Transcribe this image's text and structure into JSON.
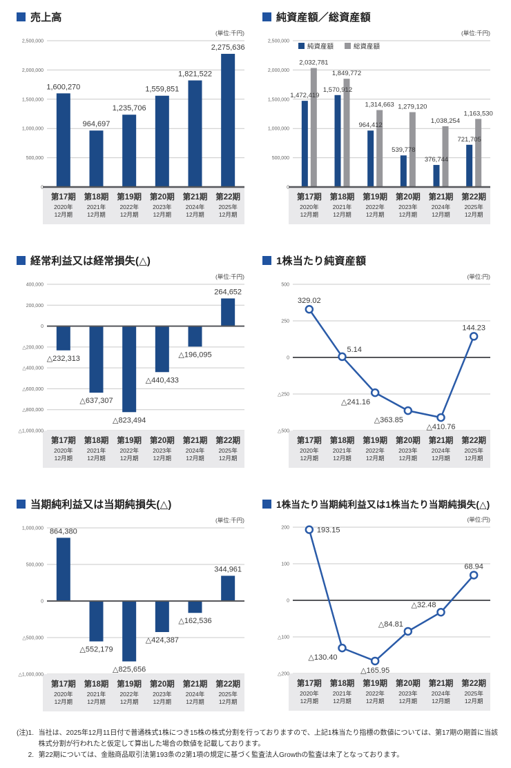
{
  "colors": {
    "accent_blue": "#2053a0",
    "bar_blue": "#1c4a87",
    "bar_gray": "#97979b",
    "line_blue": "#2a5ba8",
    "grid": "#c9c9c9",
    "zero_line": "#55565a",
    "band_bg": "#e9e9eb",
    "tick_text": "#666666",
    "label_text": "#3a3a3a",
    "category_text": "#333333",
    "unit_text": "#444444"
  },
  "categories": [
    {
      "period": "第17期",
      "year": "2020年",
      "month": "12月期"
    },
    {
      "period": "第18期",
      "year": "2021年",
      "month": "12月期"
    },
    {
      "period": "第19期",
      "year": "2022年",
      "month": "12月期"
    },
    {
      "period": "第20期",
      "year": "2023年",
      "month": "12月期"
    },
    {
      "period": "第21期",
      "year": "2024年",
      "month": "12月期"
    },
    {
      "period": "第22期",
      "year": "2025年",
      "month": "12月期"
    }
  ],
  "chart_data": [
    {
      "id": "sales",
      "type": "bar",
      "title": "売上高",
      "unit": "(単位:千円)",
      "ylim": [
        0,
        2500000
      ],
      "ytick_values": [
        2500000,
        2000000,
        1500000,
        1000000,
        500000,
        0
      ],
      "ytick_labels": [
        "2,500,000",
        "2,000,000",
        "1,500,000",
        "1,000,000",
        "500,000",
        "0"
      ],
      "values": [
        1600270,
        964697,
        1235706,
        1559851,
        1821522,
        2275636
      ],
      "labels": [
        "1,600,270",
        "964,697",
        "1,235,706",
        "1,559,851",
        "1,821,522",
        "2,275,636"
      ]
    },
    {
      "id": "net-assets-total-assets",
      "type": "grouped_bar",
      "title": "純資産額／総資産額",
      "unit": "(単位:千円)",
      "ylim": [
        0,
        2500000
      ],
      "ytick_values": [
        2500000,
        2000000,
        1500000,
        1000000,
        500000,
        0
      ],
      "ytick_labels": [
        "2,500,000",
        "2,000,000",
        "1,500,000",
        "1,000,000",
        "500,000",
        "0"
      ],
      "legend_position": "top-left",
      "series": [
        {
          "name": "純資産額",
          "color": "bar_blue",
          "values": [
            1472419,
            1570912,
            964412,
            539778,
            376744,
            721705
          ],
          "labels": [
            "1,472,419",
            "1,570,912",
            "964,412",
            "539,778",
            "376,744",
            "721,705"
          ]
        },
        {
          "name": "総資産額",
          "color": "bar_gray",
          "values": [
            2032781,
            1849772,
            1314663,
            1279120,
            1038254,
            1163530
          ],
          "labels": [
            "2,032,781",
            "1,849,772",
            "1,314,663",
            "1,279,120",
            "1,038,254",
            "1,163,530"
          ]
        }
      ]
    },
    {
      "id": "ordinary-income-or-loss",
      "type": "bar",
      "title": "経常利益又は経常損失(△)",
      "unit": "(単位:千円)",
      "ylim": [
        -1000000,
        400000
      ],
      "ytick_values": [
        400000,
        200000,
        0,
        -200000,
        -400000,
        -600000,
        -800000,
        -1000000
      ],
      "ytick_labels": [
        "400,000",
        "200,000",
        "0",
        "△200,000",
        "△400,000",
        "△600,000",
        "△800,000",
        "△1,000,000"
      ],
      "values": [
        -232313,
        -637307,
        -823494,
        -440433,
        -196095,
        264652
      ],
      "labels": [
        "△232,313",
        "△637,307",
        "△823,494",
        "△440,433",
        "△196,095",
        "264,652"
      ]
    },
    {
      "id": "net-assets-per-share",
      "type": "line",
      "title": "1株当たり純資産額",
      "unit": "(単位:円)",
      "ylim": [
        -500,
        500
      ],
      "ytick_values": [
        500,
        250,
        0,
        -250,
        -500
      ],
      "ytick_labels": [
        "500",
        "250",
        "0",
        "△250",
        "△500"
      ],
      "values": [
        329.02,
        5.14,
        -241.16,
        -363.85,
        -410.76,
        144.23
      ],
      "labels": [
        "329.02",
        "5.14",
        "△241.16",
        "△363.85",
        "△410.76",
        "144.23"
      ],
      "label_pos": [
        "above",
        "above-right",
        "below-left",
        "below-left",
        "below",
        "above"
      ]
    },
    {
      "id": "net-income-or-loss",
      "type": "bar",
      "title": "当期純利益又は当期純損失(△)",
      "unit": "(単位:千円)",
      "ylim": [
        -1000000,
        1000000
      ],
      "ytick_values": [
        1000000,
        500000,
        0,
        -500000,
        -1000000
      ],
      "ytick_labels": [
        "1,000,000",
        "500,000",
        "0",
        "△500,000",
        "△1,000,000"
      ],
      "values": [
        864380,
        -552179,
        -825656,
        -424387,
        -162536,
        344961
      ],
      "labels": [
        "864,380",
        "△552,179",
        "△825,656",
        "△424,387",
        "△162,536",
        "344,961"
      ]
    },
    {
      "id": "eps",
      "type": "line",
      "title": "1株当たり当期純利益又は1株当たり当期純損失(△)",
      "unit": "(単位:円)",
      "ylim": [
        -200,
        200
      ],
      "ytick_values": [
        200,
        100,
        0,
        -100,
        -200
      ],
      "ytick_labels": [
        "200",
        "100",
        "0",
        "△100",
        "△200"
      ],
      "values": [
        193.15,
        -130.4,
        -165.95,
        -84.81,
        -32.48,
        68.94
      ],
      "labels": [
        "193.15",
        "△130.40",
        "△165.95",
        "△84.81",
        "△32.48",
        "68.94"
      ],
      "label_pos": [
        "right",
        "below-left",
        "below",
        "above-left",
        "above-left",
        "above"
      ]
    }
  ],
  "footnote": {
    "prefix": "(注)",
    "items": [
      {
        "num": "1.",
        "text": "当社は、2025年12月11日付で普通株式1株につき15株の株式分割を行っておりますので、上記1株当たり指標の数値については、第17期の期首に当該株式分割が行われたと仮定して算出した場合の数値を記載しております。"
      },
      {
        "num": "2.",
        "text": "第22期については、金融商品取引法第193条の2第1項の規定に基づく監査法人Growthの監査は未了となっております。"
      }
    ]
  }
}
